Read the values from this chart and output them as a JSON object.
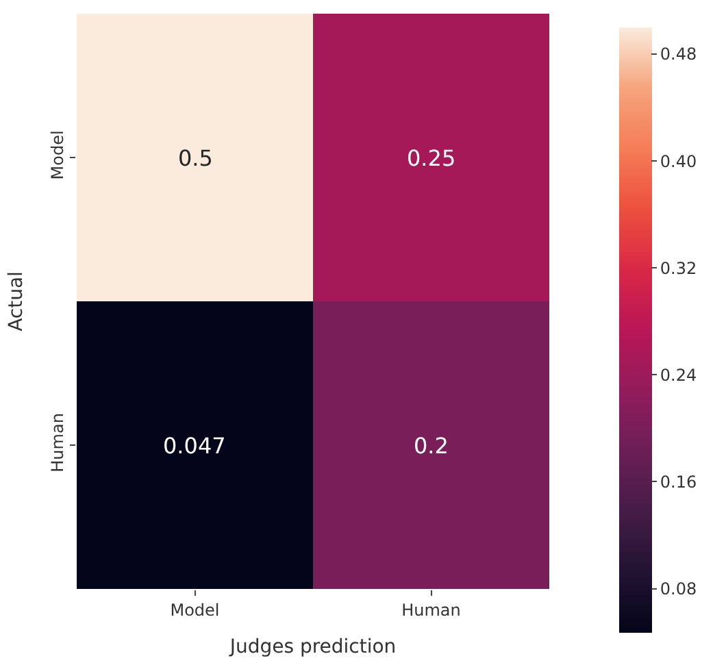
{
  "chart_data": {
    "type": "heatmap",
    "xlabel": "Judges prediction",
    "ylabel": "Actual",
    "categories": [
      "Model",
      "Human"
    ],
    "y_categories": [
      "Model",
      "Human"
    ],
    "cells": [
      [
        0.5,
        0.25
      ],
      [
        0.047,
        0.2
      ]
    ],
    "data_labels": true,
    "clim": [
      0.047,
      0.5
    ],
    "cticks": [
      {
        "value": 0.08,
        "label": "0.08"
      },
      {
        "value": 0.16,
        "label": "0.16"
      },
      {
        "value": 0.24,
        "label": "0.24"
      },
      {
        "value": 0.32,
        "label": "0.32"
      },
      {
        "value": 0.4,
        "label": "0.40"
      },
      {
        "value": 0.48,
        "label": "0.48"
      }
    ]
  }
}
